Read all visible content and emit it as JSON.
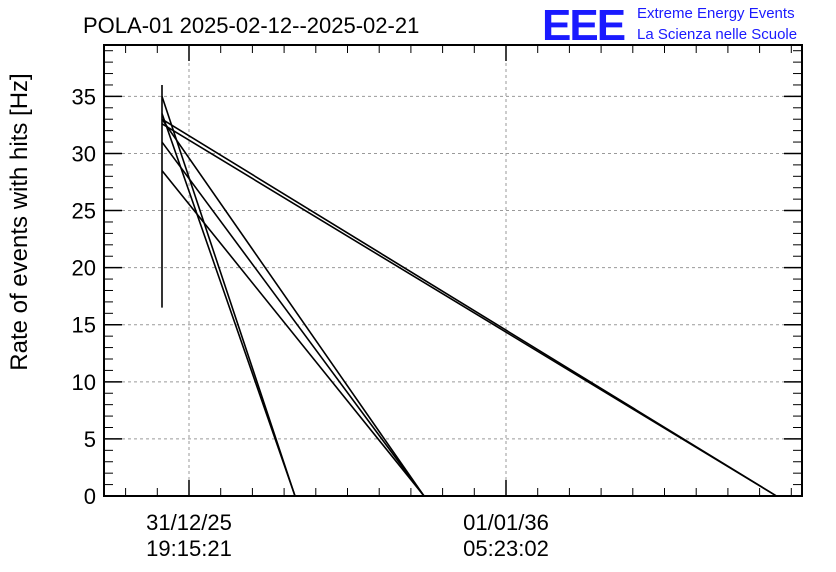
{
  "chart_data": {
    "type": "line",
    "title": "POLA-01 2025-02-12--2025-02-21",
    "ylabel": "Rate of events with hits [Hz]",
    "xlabel": "",
    "ylim": [
      0,
      39.5
    ],
    "y_ticks": [
      0,
      5,
      10,
      15,
      20,
      25,
      30,
      35
    ],
    "x_tick_labels": [
      {
        "line1": "31/12/25",
        "line2": "19:15:21"
      },
      {
        "line1": "01/01/36",
        "line2": "05:23:02"
      }
    ],
    "grid": true,
    "line_color": "#000000",
    "segments": [
      {
        "x": [
          0.0,
          1.0
        ],
        "y": [
          35.0,
          0.0
        ]
      },
      {
        "x": [
          0.0,
          1.0
        ],
        "y": [
          33.5,
          0.0
        ]
      },
      {
        "x": [
          0.0,
          1.97
        ],
        "y": [
          33.0,
          0.0
        ]
      },
      {
        "x": [
          0.0,
          1.97
        ],
        "y": [
          31.0,
          0.0
        ]
      },
      {
        "x": [
          0.0,
          1.97
        ],
        "y": [
          28.5,
          0.0
        ]
      },
      {
        "x": [
          0.0,
          4.62
        ],
        "y": [
          33.0,
          0.0
        ]
      },
      {
        "x": [
          0.0,
          4.62
        ],
        "y": [
          32.6,
          0.0
        ]
      }
    ],
    "error_bar": {
      "x": 0.0,
      "y_low": 16.5,
      "y_high": 36.0
    }
  },
  "logo": {
    "mark": "EEE",
    "line1": "Extreme Energy Events",
    "line2": "La Scienza nelle Scuole",
    "color": "#1a1aff"
  }
}
